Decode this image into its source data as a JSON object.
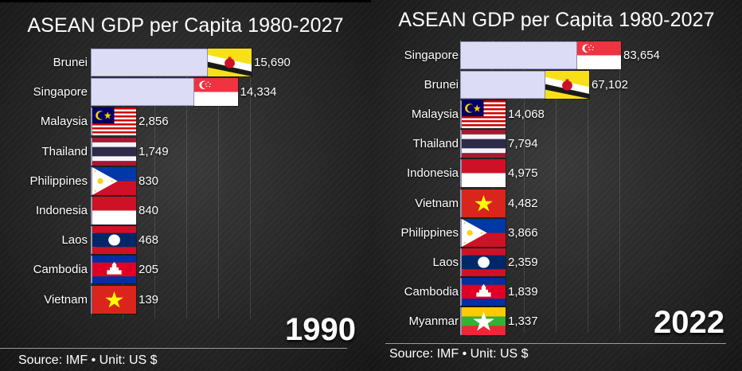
{
  "chart_data": [
    {
      "type": "bar",
      "orientation": "horizontal",
      "title": "ASEAN GDP per Capita 1980-2027",
      "year": "1990",
      "categories": [
        "Brunei",
        "Singapore",
        "Malaysia",
        "Thailand",
        "Philippines",
        "Indonesia",
        "Laos",
        "Cambodia",
        "Vietnam"
      ],
      "values": [
        15690,
        14334,
        2856,
        1749,
        830,
        840,
        468,
        205,
        139
      ],
      "value_labels": [
        "15,690",
        "14,334",
        "2,856",
        "1,749",
        "830",
        "840",
        "468",
        "205",
        "139"
      ],
      "flags": [
        "brunei-flag",
        "singapore-flag",
        "malaysia-flag",
        "thailand-flag",
        "philippines-flag",
        "indonesia-flag",
        "laos-flag",
        "cambodia-flag",
        "vietnam-flag"
      ],
      "source": "Source: IMF • Unit: US $",
      "bar_color": "#dcdcf6"
    },
    {
      "type": "bar",
      "orientation": "horizontal",
      "title": "ASEAN GDP per Capita 1980-2027",
      "year": "2022",
      "categories": [
        "Singapore",
        "Brunei",
        "Malaysia",
        "Thailand",
        "Indonesia",
        "Vietnam",
        "Philippines",
        "Laos",
        "Cambodia",
        "Myanmar"
      ],
      "values": [
        83654,
        67102,
        14068,
        7794,
        4975,
        4482,
        3866,
        2359,
        1839,
        1337
      ],
      "value_labels": [
        "83,654",
        "67,102",
        "14,068",
        "7,794",
        "4,975",
        "4,482",
        "3,866",
        "2,359",
        "1,839",
        "1,337"
      ],
      "flags": [
        "singapore-flag",
        "brunei-flag",
        "malaysia-flag",
        "thailand-flag",
        "indonesia-flag",
        "vietnam-flag",
        "philippines-flag",
        "laos-flag",
        "cambodia-flag",
        "myanmar-flag"
      ],
      "source": "Source: IMF • Unit: US $",
      "bar_color": "#dcdcf6"
    }
  ]
}
